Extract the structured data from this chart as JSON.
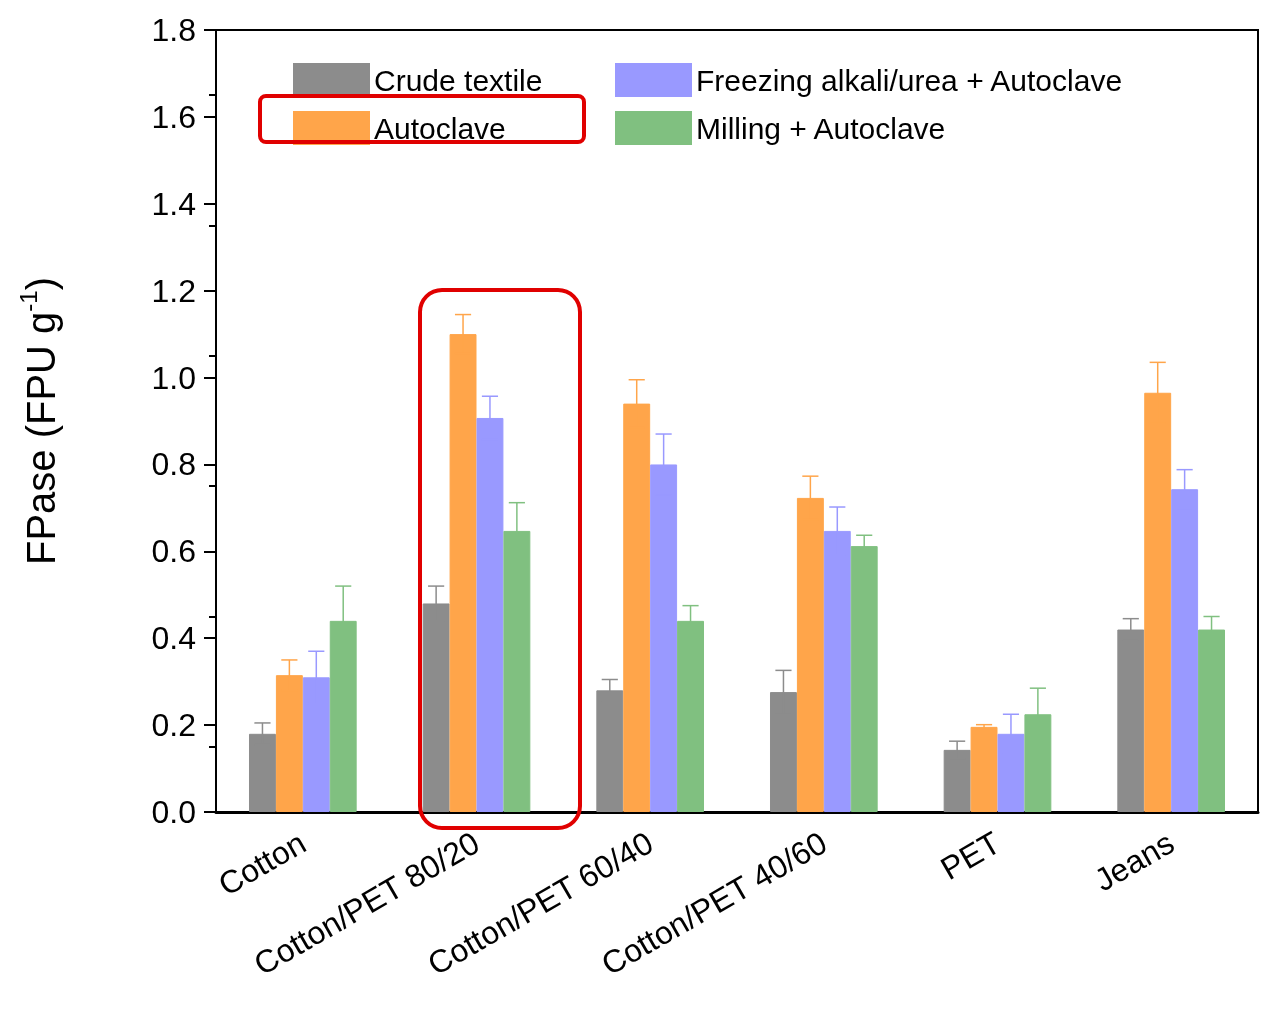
{
  "chart_data": {
    "type": "bar",
    "ylabel": "FPase (FPU g$^{-1}$)",
    "categories": [
      "Cotton",
      "Cotton/PET 80/20",
      "Cotton/PET 60/40",
      "Cotton/PET 40/60",
      "PET",
      "Jeans"
    ],
    "series": [
      {
        "name": "Crude textile",
        "color": "#8c8c8c",
        "values": [
          0.18,
          0.48,
          0.28,
          0.276,
          0.143,
          0.42
        ],
        "errors": [
          0.025,
          0.04,
          0.025,
          0.05,
          0.02,
          0.025
        ]
      },
      {
        "name": "Autoclave",
        "color": "#ffa54a",
        "values": [
          0.315,
          1.1,
          0.94,
          0.723,
          0.196,
          0.965
        ],
        "errors": [
          0.035,
          0.045,
          0.055,
          0.05,
          0.005,
          0.07
        ]
      },
      {
        "name": "Freezing alkali/urea + Autoclave",
        "color": "#9999ff",
        "values": [
          0.31,
          0.907,
          0.8,
          0.647,
          0.18,
          0.743
        ],
        "errors": [
          0.06,
          0.05,
          0.07,
          0.055,
          0.045,
          0.045
        ]
      },
      {
        "name": "Milling + Autoclave",
        "color": "#80c080",
        "values": [
          0.44,
          0.647,
          0.44,
          0.612,
          0.225,
          0.42
        ],
        "errors": [
          0.08,
          0.065,
          0.035,
          0.025,
          0.06,
          0.03
        ]
      }
    ],
    "ylim": [
      0,
      1.8
    ],
    "yticks": [
      {
        "value": 0,
        "label": "0.0"
      },
      {
        "value": 0.2,
        "label": "0.2"
      },
      {
        "value": 0.4,
        "label": "0.4"
      },
      {
        "value": 0.6,
        "label": "0.6"
      },
      {
        "value": 0.8,
        "label": "0.8"
      },
      {
        "value": 1.0,
        "label": "1.0"
      },
      {
        "value": 1.2,
        "label": "1.2"
      },
      {
        "value": 1.4,
        "label": "1.4"
      },
      {
        "value": 1.6,
        "label": "1.6"
      },
      {
        "value": 1.8,
        "label": "1.8"
      }
    ],
    "legend": "top"
  }
}
